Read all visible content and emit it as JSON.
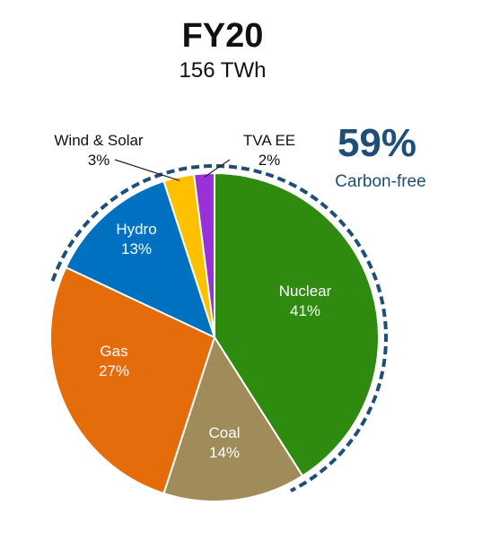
{
  "chart_data": {
    "type": "pie",
    "title": "FY20",
    "subtitle": "156 TWh",
    "start_angle_deg": 0,
    "direction": "clockwise",
    "slices": [
      {
        "label": "Nuclear",
        "value": 41,
        "pct_label": "41%",
        "color": "#2e8b10",
        "label_color": "#ffffff"
      },
      {
        "label": "Coal",
        "value": 14,
        "pct_label": "14%",
        "color": "#a08c5a",
        "label_color": "#ffffff"
      },
      {
        "label": "Gas",
        "value": 27,
        "pct_label": "27%",
        "color": "#e46c0a",
        "label_color": "#ffffff"
      },
      {
        "label": "Hydro",
        "value": 13,
        "pct_label": "13%",
        "color": "#0070c0",
        "label_color": "#ffffff"
      },
      {
        "label": "Wind & Solar",
        "value": 3,
        "pct_label": "3%",
        "color": "#ffc000",
        "label_color": "#111111"
      },
      {
        "label": "TVA EE",
        "value": 2,
        "pct_label": "2%",
        "color": "#9b30d9",
        "label_color": "#111111"
      }
    ],
    "annotation": {
      "value": "59%",
      "text": "Carbon-free",
      "color": "#1f4e79",
      "outline": "dashed"
    }
  }
}
